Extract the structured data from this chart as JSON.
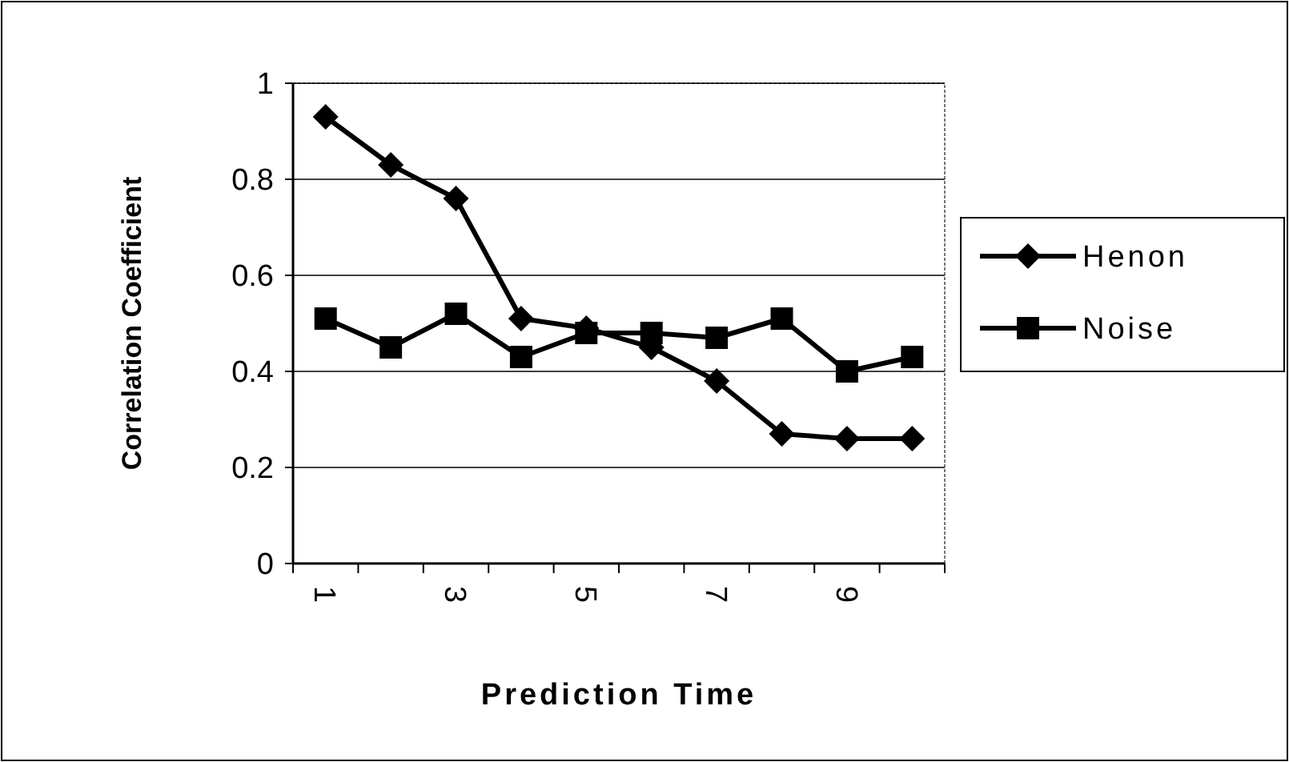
{
  "chart_data": {
    "type": "line",
    "xlabel": "Prediction Time",
    "ylabel": "Correlation Coefficient",
    "categories": [
      "1",
      null,
      "3",
      null,
      "5",
      null,
      "7",
      null,
      "9",
      null
    ],
    "series": [
      {
        "name": "Henon",
        "color": "#000000",
        "marker": "diamond",
        "values": [
          0.93,
          0.83,
          0.76,
          0.51,
          0.49,
          0.45,
          0.38,
          0.27,
          0.26,
          0.26
        ]
      },
      {
        "name": "Noise",
        "color": "#000000",
        "marker": "square",
        "values": [
          0.51,
          0.45,
          0.52,
          0.43,
          0.48,
          0.48,
          0.47,
          0.51,
          0.4,
          0.43
        ]
      }
    ],
    "ylim": [
      0,
      1
    ],
    "yticks": [
      0,
      0.2,
      0.4,
      0.6,
      0.8,
      1
    ],
    "grid": "y",
    "legend": "right"
  }
}
